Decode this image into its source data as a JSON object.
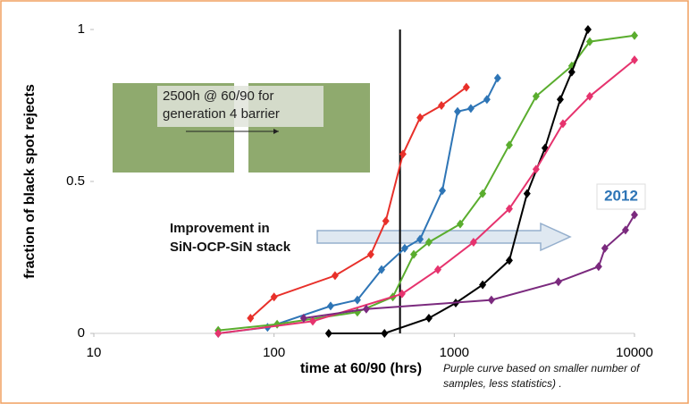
{
  "chart_data": {
    "type": "line",
    "xscale": "log",
    "xlabel": "time at 60/90 (hrs)",
    "ylabel": "fraction of black spot rejects",
    "xlim": [
      10,
      10000
    ],
    "xticks": [
      10,
      100,
      1000,
      10000
    ],
    "ylim": [
      0,
      1
    ],
    "yticks": [
      0,
      0.5,
      1
    ],
    "vline": 500,
    "annotations": [
      "2500h @ 60/90 for",
      "generation 4 barrier",
      "Improvement in",
      "SiN-OCP-SiN stack",
      "2012",
      "Purple curve based on smaller number of",
      "samples, less statistics) ."
    ],
    "series": [
      {
        "color": "#e8302a",
        "x": [
          74,
          100,
          218,
          344,
          417,
          519,
          646,
          849,
          1167
        ],
        "values": [
          0.05,
          0.12,
          0.19,
          0.26,
          0.37,
          0.59,
          0.71,
          0.75,
          0.81
        ]
      },
      {
        "color": "#2e75b6",
        "x": [
          49,
          92,
          206,
          290,
          395,
          531,
          646,
          859,
          1043,
          1236,
          1518,
          1740
        ],
        "values": [
          0.0,
          0.02,
          0.09,
          0.11,
          0.21,
          0.28,
          0.31,
          0.47,
          0.73,
          0.74,
          0.77,
          0.84
        ]
      },
      {
        "color": "#5aad2e",
        "x": [
          49,
          104,
          290,
          456,
          596,
          723,
          1079,
          1437,
          2020,
          2844,
          4487,
          5645,
          10000
        ],
        "values": [
          0.01,
          0.03,
          0.07,
          0.12,
          0.26,
          0.3,
          0.36,
          0.46,
          0.62,
          0.78,
          0.88,
          0.96,
          0.98
        ]
      },
      {
        "color": "#000000",
        "x": [
          201,
          410,
          723,
          1019,
          1437,
          2020,
          2535,
          3190,
          3874,
          4487,
          5520
        ],
        "values": [
          0.0,
          0.0,
          0.05,
          0.1,
          0.16,
          0.24,
          0.46,
          0.61,
          0.77,
          0.86,
          1.0
        ]
      },
      {
        "color": "#e6336e",
        "x": [
          49,
          164,
          513,
          811,
          1279,
          2020,
          2844,
          4009,
          5645,
          10000
        ],
        "values": [
          0.0,
          0.04,
          0.13,
          0.21,
          0.3,
          0.41,
          0.54,
          0.69,
          0.78,
          0.9
        ]
      },
      {
        "color": "#7b2a7e",
        "x": [
          146,
          325,
          1607,
          3783,
          6324,
          6850,
          8913,
          10000
        ],
        "values": [
          0.05,
          0.08,
          0.11,
          0.17,
          0.22,
          0.28,
          0.34,
          0.39
        ]
      }
    ]
  }
}
